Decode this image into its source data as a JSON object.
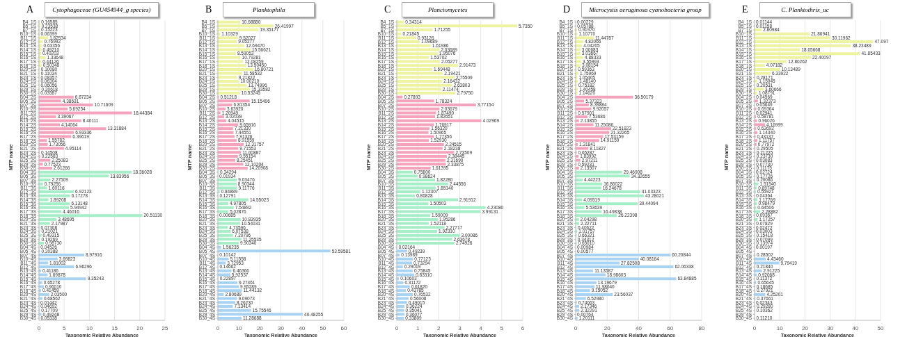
{
  "chart_data": [
    {
      "type": "bar",
      "orientation": "horizontal",
      "title": "Cytophagaceae (GU454944_g species)",
      "annotations": [
        "A"
      ],
      "xlabel": "Taxonomic Relative Abundance",
      "ylabel": "MTP name",
      "xlim": [
        0,
        25
      ],
      "xticks": [
        0,
        5,
        10,
        15,
        20,
        25
      ],
      "grid": "x",
      "categories": [
        "B4_1S",
        "B5_1S",
        "B7_1S",
        "B10_1S",
        "B11_1S",
        "B12_1S",
        "B13_1S",
        "B14_1S",
        "B15_1S",
        "B16_1S",
        "B17_1S",
        "B18_1S",
        "B20_1S",
        "B21_1S",
        "B23_1S",
        "B24_1S",
        "B25_1S",
        "B29_1S",
        "B30_1S",
        "B04_2S",
        "B05_2S",
        "B07_2S",
        "B10_2S",
        "B11_2S",
        "B12_2S",
        "B13_2S",
        "B14_2S",
        "B15_2S",
        "B16_2S",
        "B17_2S",
        "B18_2S",
        "B20_2S",
        "B21_2S",
        "B23_2S",
        "B24_2S",
        "B25_2S",
        "B29_2S",
        "B30_2S",
        "B04_3S",
        "B05_3S",
        "B07_3S",
        "B10_3S",
        "B11_3S",
        "B12_3S",
        "B13_3S",
        "B14_3S",
        "B15_3S",
        "B16_3S",
        "B17_3S",
        "B18_3S",
        "B20_3S",
        "B21_3S",
        "B23_3S",
        "B24_3S",
        "B25_3S",
        "B29_3S",
        "B30_3S",
        "B04_4S",
        "B05_4S",
        "B07_4S",
        "B10_4S",
        "B11_4S",
        "B12_4S",
        "B13_4S",
        "B14_4S",
        "B15_4S",
        "B16_4S",
        "B17_4S",
        "B18_4S",
        "B20_4S",
        "B21_4S",
        "B23_4S",
        "B24_4S",
        "B25_4S",
        "B29_4S",
        "B30_4S"
      ],
      "colors": [
        "#eef3a2",
        "#eef3a2",
        "#eef3a2",
        "#eef3a2",
        "#eef3a2",
        "#eef3a2",
        "#eef3a2",
        "#eef3a2",
        "#eef3a2",
        "#eef3a2",
        "#eef3a2",
        "#eef3a2",
        "#eef3a2",
        "#eef3a2",
        "#eef3a2",
        "#eef3a2",
        "#eef3a2",
        "#eef3a2",
        "#eef3a2",
        "#f5a3bd",
        "#f5a3bd",
        "#f5a3bd",
        "#f5a3bd",
        "#f5a3bd",
        "#f5a3bd",
        "#f5a3bd",
        "#f5a3bd",
        "#f5a3bd",
        "#f5a3bd",
        "#f5a3bd",
        "#f5a3bd",
        "#f5a3bd",
        "#f5a3bd",
        "#f5a3bd",
        "#f5a3bd",
        "#f5a3bd",
        "#f5a3bd",
        "#f5a3bd",
        "#a6eec7",
        "#a6eec7",
        "#a6eec7",
        "#a6eec7",
        "#a6eec7",
        "#a6eec7",
        "#a6eec7",
        "#a6eec7",
        "#a6eec7",
        "#a6eec7",
        "#a6eec7",
        "#a6eec7",
        "#a6eec7",
        "#a6eec7",
        "#a6eec7",
        "#a6eec7",
        "#a6eec7",
        "#a6eec7",
        "#a6eec7",
        "#a9d3f3",
        "#a9d3f3",
        "#a9d3f3",
        "#a9d3f3",
        "#a9d3f3",
        "#a9d3f3",
        "#a9d3f3",
        "#a9d3f3",
        "#a9d3f3",
        "#a9d3f3",
        "#a9d3f3",
        "#a9d3f3",
        "#a9d3f3",
        "#a9d3f3",
        "#a9d3f3",
        "#a9d3f3",
        "#a9d3f3",
        "#a9d3f3",
        "#a9d3f3"
      ],
      "values": [
        0.16585,
        0.23538,
        0.15223,
        0.06399,
        1.82534,
        0.76992,
        0.63356,
        0.4921,
        0.40203,
        1.33648,
        0.44126,
        0.50348,
        0.1008,
        0.11034,
        0.08357,
        0.06304,
        0.06056,
        0.20618,
        0.03587,
        6.87234,
        4.38631,
        10.71609,
        5.69254,
        18.44384,
        3.39067,
        8.40111,
        4.14064,
        13.31884,
        6.93336,
        6.39619,
        1.55782,
        1.73056,
        4.95114,
        0.14508,
        0.22583,
        2.25083,
        0.77523,
        2.61266,
        18.36028,
        13.83956,
        2.27509,
        0.79256,
        1.60116,
        6.92123,
        6.17278,
        1.89208,
        6.13148,
        5.94942,
        4.46016,
        20.5113,
        3.48695,
        2.17987,
        0.07308,
        0.21021,
        0.49315,
        0.19269,
        0.9873,
        0.04526,
        0.20388,
        8.97916,
        3.69823,
        1.81002,
        6.96296,
        0.41186,
        1.69878,
        9.35243,
        0.65278,
        0.9601,
        0.41459,
        2.035,
        0.68562,
        0.01442,
        0.04692,
        0.17709,
        0.49248,
        0.05338
      ],
      "value_labels": [
        "0.16585",
        "0.23538",
        "0.15223",
        "0.06399",
        "1.82534",
        "0.76992",
        "0.63356",
        "0.49210",
        "0.40203",
        "1.33648",
        "0.44126",
        "0.50348",
        "0.10080",
        "0.11034",
        "0.08357",
        "0.06304",
        "0.06056",
        "0.20618",
        "0.03587",
        "6.87234",
        "4.38631",
        "10.71609",
        "5.69254",
        "18.44384",
        "3.39067",
        "8.40111",
        "4.14064",
        "13.31884",
        "6.93336",
        "6.39619",
        "1.55782",
        "1.73056",
        "4.95114",
        "0.14508",
        "0.22583",
        "2.25083",
        "0.77523",
        "2.61266",
        "18.36028",
        "13.83956",
        "2.27509",
        "0.79256",
        "1.60116",
        "6.92123",
        "6.17278",
        "1.89208",
        "6.13148",
        "5.94942",
        "4.46016",
        "20.51130",
        "3.48695",
        "2.17987",
        "0.07308",
        "0.21021",
        "0.49315",
        "0.19269",
        "0.98730",
        "0.04526",
        "0.20388",
        "8.97916",
        "3.69823",
        "1.81002",
        "6.96296",
        "0.41186",
        "1.69878",
        "9.35243",
        "0.65278",
        "0.96010",
        "0.41459",
        "2.03500",
        "0.68562",
        "0.01442",
        "0.04692",
        "0.17709",
        "0.49248",
        "0.05338"
      ]
    },
    {
      "type": "bar",
      "orientation": "horizontal",
      "title": "Planktophila",
      "annotations": [
        "B"
      ],
      "xlabel": "Taxonomic Relative Abundance",
      "ylabel": "MTP name",
      "xlim": [
        0,
        60
      ],
      "xticks": [
        0,
        10,
        20,
        30,
        40,
        50,
        60
      ],
      "grid": "x",
      "categories": [
        "B4_1S",
        "B5_1S",
        "B7_1S",
        "B10_1S",
        "B11_1S",
        "B12_1S",
        "B13_1S",
        "B14_1S",
        "B15_1S",
        "B16_1S",
        "B17_1S",
        "B18_1S",
        "B20_1S",
        "B21_1S",
        "B23_1S",
        "B24_1S",
        "B25_1S",
        "B29_1S",
        "B30_1S",
        "B04_2S",
        "B05_2S",
        "B07_2S",
        "B10_2S",
        "B11_2S",
        "B12_2S",
        "B13_2S",
        "B14_2S",
        "B15_2S",
        "B16_2S",
        "B17_2S",
        "B18_2S",
        "B20_2S",
        "B21_2S",
        "B23_2S",
        "B24_2S",
        "B25_2S",
        "B29_2S",
        "B30_2S",
        "B04_3S",
        "B05_3S",
        "B07_3S",
        "B10_3S",
        "B11_3S",
        "B12_3S",
        "B13_3S",
        "B14_3S",
        "B15_3S",
        "B16_3S",
        "B17_3S",
        "B18_3S",
        "B20_3S",
        "B21_3S",
        "B23_3S",
        "B24_3S",
        "B25_3S",
        "B29_3S",
        "B30_3S",
        "B04_4S",
        "B05_4S",
        "B07_4S",
        "B10_4S",
        "B11_4S",
        "B12_4S",
        "B13_4S",
        "B14_4S",
        "B15_4S",
        "B16_4S",
        "B17_4S",
        "B18_4S",
        "B20_4S",
        "B21_4S",
        "B23_4S",
        "B24_4S",
        "B25_4S",
        "B29_4S",
        "B30_4S"
      ],
      "colors": [
        "#eef3a2",
        "#eef3a2",
        "#eef3a2",
        "#eef3a2",
        "#eef3a2",
        "#eef3a2",
        "#eef3a2",
        "#eef3a2",
        "#eef3a2",
        "#eef3a2",
        "#eef3a2",
        "#eef3a2",
        "#eef3a2",
        "#eef3a2",
        "#eef3a2",
        "#eef3a2",
        "#eef3a2",
        "#eef3a2",
        "#eef3a2",
        "#f5a3bd",
        "#f5a3bd",
        "#f5a3bd",
        "#f5a3bd",
        "#f5a3bd",
        "#f5a3bd",
        "#f5a3bd",
        "#f5a3bd",
        "#f5a3bd",
        "#f5a3bd",
        "#f5a3bd",
        "#f5a3bd",
        "#f5a3bd",
        "#f5a3bd",
        "#f5a3bd",
        "#f5a3bd",
        "#f5a3bd",
        "#f5a3bd",
        "#f5a3bd",
        "#a6eec7",
        "#a6eec7",
        "#a6eec7",
        "#a6eec7",
        "#a6eec7",
        "#a6eec7",
        "#a6eec7",
        "#a6eec7",
        "#a6eec7",
        "#a6eec7",
        "#a6eec7",
        "#a6eec7",
        "#a6eec7",
        "#a6eec7",
        "#a6eec7",
        "#a6eec7",
        "#a6eec7",
        "#a6eec7",
        "#a6eec7",
        "#a9d3f3",
        "#a9d3f3",
        "#a9d3f3",
        "#a9d3f3",
        "#a9d3f3",
        "#a9d3f3",
        "#a9d3f3",
        "#a9d3f3",
        "#a9d3f3",
        "#a9d3f3",
        "#a9d3f3",
        "#a9d3f3",
        "#a9d3f3",
        "#a9d3f3",
        "#a9d3f3",
        "#a9d3f3",
        "#a9d3f3",
        "#a9d3f3",
        "#a9d3f3"
      ],
      "values": [
        10.6888,
        26.41997,
        19.35177,
        1.10329,
        9.52027,
        9.05277,
        12.6947,
        15.56621,
        8.59053,
        10.79281,
        12.08259,
        13.5045,
        16.80721,
        11.58532,
        9.21822,
        10.0021,
        13.74996,
        15.33582,
        10.53245,
        0.51218,
        15.15496,
        6.81354,
        3.6392,
        1.20949,
        3.02039,
        4.04515,
        9.65916,
        7.2133,
        7.44551,
        7.91326,
        8.91559,
        12.31757,
        9.71553,
        11.00887,
        9.55154,
        8.25451,
        12.10204,
        14.20908,
        0.34294,
        0.01934,
        9.03476,
        8.90344,
        9.11776,
        0.84889,
        0.12791,
        14.55023,
        4.97805,
        7.54892,
        5.02876,
        0.00685,
        10.83935,
        10.54031,
        4.73596,
        6.07538,
        7.20796,
        11.25535,
        9.9034,
        1.56235,
        53.59581,
        0.10142,
        5.11558,
        3.72953,
        0.14662,
        6.46366,
        5.92537,
        0.22897,
        9.27461,
        9.95289,
        11.44132,
        2.80689,
        9.09073,
        8.2623,
        7.13414,
        15.75546,
        40.48255,
        11.28688
      ],
      "value_labels": [
        "10.68880",
        "26.41997",
        "19.35177",
        "1.10329",
        "9.52027",
        "9.05277",
        "12.69470",
        "15.56621",
        "8.59053",
        "10.79281",
        "12.08259",
        "13.50450",
        "16.80721",
        "11.58532",
        "9.21822",
        "10.00210",
        "13.74996",
        "15.33582",
        "10.53245",
        "0.51218",
        "15.15496",
        "6.81354",
        "3.63920",
        "1.20949",
        "3.02039",
        "4.04515",
        "9.65916",
        "7.21330",
        "7.44551",
        "7.91326",
        "8.91559",
        "12.31757",
        "9.71553",
        "11.00887",
        "9.55154",
        "8.25451",
        "12.10204",
        "14.20908",
        "0.34294",
        "0.01934",
        "9.03476",
        "8.90344",
        "9.11776",
        "0.84889",
        "0.12791",
        "14.55023",
        "4.97805",
        "7.54892",
        "5.02876",
        "0.00685",
        "10.83935",
        "10.54031",
        "4.73596",
        "6.07538",
        "7.20796",
        "11.25535",
        "9.90340",
        "1.56235",
        "53.59581",
        "0.10142",
        "5.11558",
        "3.72953",
        "0.14662",
        "6.46366",
        "5.92537",
        "0.22897",
        "9.27461",
        "9.95289",
        "11.44132",
        "2.80689",
        "9.09073",
        "8.26230",
        "7.13414",
        "15.75546",
        "40.48255",
        "11.28688"
      ]
    },
    {
      "type": "bar",
      "orientation": "horizontal",
      "title": "Planctomycetes",
      "annotations": [
        "C"
      ],
      "xlabel": "Taxonomic Relative Abundance",
      "ylabel": "MTP name",
      "xlim": [
        0,
        6
      ],
      "xticks": [
        0,
        1,
        2,
        3,
        4,
        5,
        6
      ],
      "grid": "x",
      "categories": [
        "B4_1S",
        "B5_1S",
        "B7_1S",
        "B10_1S",
        "B11_1S",
        "B12_1S",
        "B13_1S",
        "B14_1S",
        "B15_1S",
        "B16_1S",
        "B17_1S",
        "B18_1S",
        "B20_1S",
        "B21_1S",
        "B23_1S",
        "B24_1S",
        "B25_1S",
        "B29_1S",
        "B30_1S",
        "B04_2S",
        "B05_2S",
        "B07_2S",
        "B10_2S",
        "B11_2S",
        "B12_2S",
        "B13_2S",
        "B14_2S",
        "B15_2S",
        "B16_2S",
        "B17_2S",
        "B18_2S",
        "B20_2S",
        "B21_2S",
        "B23_2S",
        "B24_2S",
        "B25_2S",
        "B29_2S",
        "B30_2S",
        "B04_3S",
        "B05_3S",
        "B07_3S",
        "B10_3S",
        "B11_3S",
        "B12_3S",
        "B13_3S",
        "B14_3S",
        "B15_3S",
        "B16_3S",
        "B17_3S",
        "B18_3S",
        "B20_3S",
        "B21_3S",
        "B23_3S",
        "B24_3S",
        "B25_3S",
        "B29_3S",
        "B30_3S",
        "B04_4S",
        "B05_4S",
        "B07_4S",
        "B10_4S",
        "B11_4S",
        "B12_4S",
        "B13_4S",
        "B14_4S",
        "B15_4S",
        "B16_4S",
        "B17_4S",
        "B18_4S",
        "B20_4S",
        "B21_4S",
        "B23_4S",
        "B24_4S",
        "B25_4S",
        "B29_4S",
        "B30_4S"
      ],
      "colors": [
        "#eef3a2",
        "#eef3a2",
        "#eef3a2",
        "#eef3a2",
        "#eef3a2",
        "#eef3a2",
        "#eef3a2",
        "#eef3a2",
        "#eef3a2",
        "#eef3a2",
        "#eef3a2",
        "#eef3a2",
        "#eef3a2",
        "#eef3a2",
        "#eef3a2",
        "#eef3a2",
        "#eef3a2",
        "#eef3a2",
        "#eef3a2",
        "#f5a3bd",
        "#f5a3bd",
        "#f5a3bd",
        "#f5a3bd",
        "#f5a3bd",
        "#f5a3bd",
        "#f5a3bd",
        "#f5a3bd",
        "#f5a3bd",
        "#f5a3bd",
        "#f5a3bd",
        "#f5a3bd",
        "#f5a3bd",
        "#f5a3bd",
        "#f5a3bd",
        "#f5a3bd",
        "#f5a3bd",
        "#f5a3bd",
        "#f5a3bd",
        "#a6eec7",
        "#a6eec7",
        "#a6eec7",
        "#a6eec7",
        "#a6eec7",
        "#a6eec7",
        "#a6eec7",
        "#a6eec7",
        "#a6eec7",
        "#a6eec7",
        "#a6eec7",
        "#a6eec7",
        "#a6eec7",
        "#a6eec7",
        "#a6eec7",
        "#a6eec7",
        "#a6eec7",
        "#a6eec7",
        "#a6eec7",
        "#a9d3f3",
        "#a9d3f3",
        "#a9d3f3",
        "#a9d3f3",
        "#a9d3f3",
        "#a9d3f3",
        "#a9d3f3",
        "#a9d3f3",
        "#a9d3f3",
        "#a9d3f3",
        "#a9d3f3",
        "#a9d3f3",
        "#a9d3f3",
        "#a9d3f3",
        "#a9d3f3",
        "#a9d3f3",
        "#a9d3f3",
        "#a9d3f3",
        "#a9d3f3"
      ],
      "values": [
        0.34314,
        5.735,
        1.71255,
        0.21845,
        0.93126,
        1.09689,
        1.61986,
        2.03689,
        1.95076,
        1.53702,
        2.05277,
        2.91473,
        1.69448,
        2.19421,
        2.75509,
        2.16432,
        2.63803,
        2.11474,
        2.7975,
        0.27893,
        1.78324,
        3.77154,
        2.03679,
        1.8749,
        1.82651,
        4.02969,
        1.76917,
        1.5632,
        1.50965,
        1.77356,
        1.5293,
        2.24515,
        2.18238,
        2.73509,
        2.38445,
        2.3169,
        2.33875,
        1.61395,
        0.758,
        0.98624,
        1.8228,
        2.44556,
        1.8514,
        1.12307,
        0.86828,
        2.91912,
        1.50503,
        4.2308,
        3.99131,
        1.59009,
        1.95286,
        1.52118,
        2.27717,
        1.9231,
        3.00086,
        2.63678,
        2.74926,
        0.02164,
        0.49239,
        0.13989,
        0.77123,
        0.73294,
        0.29019,
        0.75845,
        0.8331,
        0.10603,
        0.31172,
        0.6182,
        0.43785,
        0.76532,
        0.56008,
        0.49015,
        0.36224,
        0.35041,
        0.36077,
        0.33809
      ],
      "value_labels": [
        "0.34314",
        "5.7350",
        "1.71255",
        "0.21845",
        "0.93126",
        "1.09689",
        "1.61986",
        "2.03689",
        "1.95076",
        "1.53702",
        "2.05277",
        "2.91473",
        "1.69448",
        "2.19421",
        "2.75509",
        "2.16432",
        "2.63803",
        "2.11474",
        "2.79750",
        "0.27893",
        "1.78324",
        "3.77154",
        "2.03679",
        "1.87490",
        "1.82651",
        "4.02969",
        "1.76917",
        "1.56320",
        "1.50965",
        "1.77356",
        "1.52930",
        "2.24515",
        "2.18238",
        "2.73509",
        "2.38445",
        "2.31690",
        "2.33875",
        "1.61395",
        "0.75800",
        "0.98624",
        "1.82280",
        "2.44556",
        "1.85140",
        "1.12307",
        "0.86828",
        "2.91912",
        "1.50503",
        "4.23080",
        "3.99131",
        "1.59009",
        "1.95286",
        "1.52118",
        "2.27717",
        "1.92310",
        "3.00086",
        "2.63678",
        "2.74926",
        "0.02164",
        "0.49239",
        "0.13989",
        "0.77123",
        "0.73294",
        "0.29019",
        "0.75845",
        "0.83310",
        "0.10603",
        "0.31172",
        "0.61820",
        "0.43785",
        "0.76532",
        "0.56008",
        "0.49015",
        "0.36224",
        "0.35041",
        "0.36077",
        "0.33809"
      ]
    },
    {
      "type": "bar",
      "orientation": "horizontal",
      "title": "Microcystis aeruginosa cyanobacteria group",
      "annotations": [
        "D"
      ],
      "xlabel": "Taxonomic Relative Abundance",
      "ylabel": "MTP name",
      "xlim": [
        0,
        80
      ],
      "xticks": [
        0,
        20,
        40,
        60,
        80
      ],
      "grid": "x",
      "categories": [
        "B4_1S",
        "B5_1S",
        "B7_1S",
        "B10_1S",
        "B11_1S",
        "B12_1S",
        "B13_1S",
        "B14_1S",
        "B15_1S",
        "B16_1S",
        "B17_1S",
        "B18_1S",
        "B20_1S",
        "B21_1S",
        "B23_1S",
        "B24_1S",
        "B25_1S",
        "B29_1S",
        "B30_1S",
        "B04_2S",
        "B05_2S",
        "B07_2S",
        "B10_2S",
        "B11_2S",
        "B12_2S",
        "B13_2S",
        "B14_2S",
        "B15_2S",
        "B16_2S",
        "B17_2S",
        "B18_2S",
        "B20_2S",
        "B21_2S",
        "B23_2S",
        "B24_2S",
        "B25_2S",
        "B29_2S",
        "B30_2S",
        "B04_3S",
        "B05_3S",
        "B07_3S",
        "B10_3S",
        "B11_3S",
        "B12_3S",
        "B13_3S",
        "B14_3S",
        "B15_3S",
        "B16_3S",
        "B17_3S",
        "B18_3S",
        "B20_3S",
        "B21_3S",
        "B23_3S",
        "B24_3S",
        "B25_3S",
        "B29_3S",
        "B30_3S",
        "B04_4S",
        "B05_4S",
        "B07_4S",
        "B10_4S",
        "B11_4S",
        "B12_4S",
        "B13_4S",
        "B14_4S",
        "B15_4S",
        "B16_4S",
        "B17_4S",
        "B18_4S",
        "B20_4S",
        "B21_4S",
        "B23_4S",
        "B24_4S",
        "B25_4S",
        "B29_4S",
        "B30_4S"
      ],
      "colors": [
        "#eef3a2",
        "#eef3a2",
        "#eef3a2",
        "#eef3a2",
        "#eef3a2",
        "#eef3a2",
        "#eef3a2",
        "#eef3a2",
        "#eef3a2",
        "#eef3a2",
        "#eef3a2",
        "#eef3a2",
        "#eef3a2",
        "#eef3a2",
        "#eef3a2",
        "#eef3a2",
        "#eef3a2",
        "#eef3a2",
        "#eef3a2",
        "#f5a3bd",
        "#f5a3bd",
        "#f5a3bd",
        "#f5a3bd",
        "#f5a3bd",
        "#f5a3bd",
        "#f5a3bd",
        "#f5a3bd",
        "#f5a3bd",
        "#f5a3bd",
        "#f5a3bd",
        "#f5a3bd",
        "#f5a3bd",
        "#f5a3bd",
        "#f5a3bd",
        "#f5a3bd",
        "#f5a3bd",
        "#f5a3bd",
        "#f5a3bd",
        "#a6eec7",
        "#a6eec7",
        "#a6eec7",
        "#a6eec7",
        "#a6eec7",
        "#a6eec7",
        "#a6eec7",
        "#a6eec7",
        "#a6eec7",
        "#a6eec7",
        "#a6eec7",
        "#a6eec7",
        "#a6eec7",
        "#a6eec7",
        "#a6eec7",
        "#a6eec7",
        "#a6eec7",
        "#a6eec7",
        "#a6eec7",
        "#a9d3f3",
        "#a9d3f3",
        "#a9d3f3",
        "#a9d3f3",
        "#a9d3f3",
        "#a9d3f3",
        "#a9d3f3",
        "#a9d3f3",
        "#a9d3f3",
        "#a9d3f3",
        "#a9d3f3",
        "#a9d3f3",
        "#a9d3f3",
        "#a9d3f3",
        "#a9d3f3",
        "#a9d3f3",
        "#a9d3f3",
        "#a9d3f3",
        "#a9d3f3"
      ],
      "values": [
        0.00229,
        0.05788,
        0.9197,
        1.1077,
        11.44787,
        4.82066,
        4.04205,
        3.00683,
        3.03667,
        4.88333,
        3.55993,
        3.08154,
        0.59363,
        1.75969,
        1.05405,
        1.4814,
        0.75182,
        1.40458,
        1.1462,
        36.50179,
        5.37323,
        8.39884,
        9.92057,
        0.57901,
        7.53686,
        2.13855,
        11.25086,
        22.51823,
        21.32265,
        17.53159,
        14.91159,
        1.31841,
        8.11827,
        0.65287,
        1.83992,
        2.97211,
        0.59231,
        2.13507,
        29.46908,
        34.32655,
        4.44223,
        16.86022,
        16.24678,
        41.03323,
        43.28021,
        4.09519,
        39.44094,
        5.53639,
        16.49838,
        26.22398,
        2.04298,
        2.22711,
        0.40622,
        1.01757,
        0.66321,
        0.34312,
        0.6501,
        0.00984,
        0.00577,
        60.20844,
        40.08164,
        27.82508,
        62.06338,
        11.13587,
        18.98603,
        63.84885,
        13.19679,
        11.9864,
        9.15052,
        23.56037,
        6.5298,
        0.74063,
        2.17346,
        2.32291,
        0.00764,
        1.20111
      ],
      "value_labels": [
        "0.00229",
        "0.05788",
        "0.91970",
        "1.10770",
        "11.44787",
        "4.82066",
        "4.04205",
        "3.00683",
        "3.03667",
        "4.88333",
        "3.55993",
        "3.08154",
        "0.59363",
        "1.75969",
        "1.05405",
        "1.48140",
        "0.75182",
        "1.40458",
        "1.14620",
        "36.50179",
        "5.37323",
        "8.39884",
        "9.92057",
        "0.57901",
        "7.53686",
        "2.13855",
        "11.25086",
        "22.51823",
        "21.32265",
        "17.53159",
        "14.91159",
        "1.31841",
        "8.11827",
        "0.65287",
        "1.83992",
        "2.97211",
        "0.59231",
        "2.13507",
        "29.46908",
        "34.32655",
        "4.44223",
        "16.86022",
        "16.24678",
        "41.03323",
        "43.28021",
        "4.09519",
        "39.44094",
        "5.53639",
        "16.49838",
        "26.22398",
        "2.04298",
        "2.22711",
        "0.40622",
        "1.01757",
        "0.66321",
        "0.34312",
        "0.65010",
        "0.00984",
        "0.00577",
        "60.20844",
        "40.08164",
        "27.82508",
        "62.06338",
        "11.13587",
        "18.98603",
        "63.84885",
        "13.19679",
        "11.98640",
        "9.15052",
        "23.56037",
        "6.52980",
        "0.74063",
        "2.17346",
        "2.32291",
        "0.00764",
        "1.20111"
      ]
    },
    {
      "type": "bar",
      "orientation": "horizontal",
      "title": "C. Planktothrix_uc",
      "annotations": [
        "E"
      ],
      "xlabel": "Taxonomic Relative Abundance",
      "ylabel": "MTP name",
      "xlim": [
        0,
        50
      ],
      "xticks": [
        0,
        10,
        20,
        30,
        40,
        50
      ],
      "grid": "x",
      "categories": [
        "B4_1S",
        "B5_1S",
        "B7_1S",
        "B10_1S",
        "B11_1S",
        "B12_1S",
        "B13_1S",
        "B14_1S",
        "B15_1S",
        "B16_1S",
        "B17_1S",
        "B18_1S",
        "B20_1S",
        "B21_1S",
        "B23_1S",
        "B24_1S",
        "B25_1S",
        "B29_1S",
        "B30_1S",
        "B04_2S",
        "B05_2S",
        "B07_2S",
        "B10_2S",
        "B11_2S",
        "B12_2S",
        "B13_2S",
        "B14_2S",
        "B15_2S",
        "B16_2S",
        "B17_2S",
        "B18_2S",
        "B20_2S",
        "B21_2S",
        "B23_2S",
        "B24_2S",
        "B25_2S",
        "B29_2S",
        "B30_2S",
        "B04_3S",
        "B05_3S",
        "B07_3S",
        "B10_3S",
        "B11_3S",
        "B12_3S",
        "B13_3S",
        "B14_3S",
        "B15_3S",
        "B16_3S",
        "B17_3S",
        "B18_3S",
        "B20_3S",
        "B21_3S",
        "B23_3S",
        "B24_3S",
        "B25_3S",
        "B29_3S",
        "B30_3S",
        "B04_4S",
        "B05_4S",
        "B07_4S",
        "B10_4S",
        "B11_4S",
        "B12_4S",
        "B13_4S",
        "B14_4S",
        "B15_4S",
        "B16_4S",
        "B17_4S",
        "B18_4S",
        "B20_4S",
        "B21_4S",
        "B23_4S",
        "B24_4S",
        "B25_4S",
        "B29_4S",
        "B30_4S"
      ],
      "colors": [
        "#eef3a2",
        "#eef3a2",
        "#eef3a2",
        "#eef3a2",
        "#eef3a2",
        "#eef3a2",
        "#eef3a2",
        "#eef3a2",
        "#eef3a2",
        "#eef3a2",
        "#eef3a2",
        "#eef3a2",
        "#eef3a2",
        "#eef3a2",
        "#eef3a2",
        "#eef3a2",
        "#eef3a2",
        "#eef3a2",
        "#eef3a2",
        "#f5a3bd",
        "#f5a3bd",
        "#f5a3bd",
        "#f5a3bd",
        "#f5a3bd",
        "#f5a3bd",
        "#f5a3bd",
        "#f5a3bd",
        "#f5a3bd",
        "#f5a3bd",
        "#f5a3bd",
        "#f5a3bd",
        "#f5a3bd",
        "#f5a3bd",
        "#f5a3bd",
        "#f5a3bd",
        "#f5a3bd",
        "#f5a3bd",
        "#f5a3bd",
        "#a6eec7",
        "#a6eec7",
        "#a6eec7",
        "#a6eec7",
        "#a6eec7",
        "#a6eec7",
        "#a6eec7",
        "#a6eec7",
        "#a6eec7",
        "#a6eec7",
        "#a6eec7",
        "#a6eec7",
        "#a6eec7",
        "#a6eec7",
        "#a6eec7",
        "#a6eec7",
        "#a6eec7",
        "#a6eec7",
        "#a6eec7",
        "#a9d3f3",
        "#a9d3f3",
        "#a9d3f3",
        "#a9d3f3",
        "#a9d3f3",
        "#a9d3f3",
        "#a9d3f3",
        "#a9d3f3",
        "#a9d3f3",
        "#a9d3f3",
        "#a9d3f3",
        "#a9d3f3",
        "#a9d3f3",
        "#a9d3f3",
        "#a9d3f3",
        "#a9d3f3",
        "#a9d3f3",
        "#a9d3f3",
        "#a9d3f3"
      ],
      "values": [
        0.01144,
        0.01158,
        2.80984,
        21.86941,
        30.11962,
        47.097,
        38.23489,
        18.05668,
        41.85433,
        22.40097,
        12.80262,
        4.07182,
        10.13489,
        6.33922,
        0.28171,
        1.15045,
        0.20531,
        3.60666,
        1.08791,
        0.04569,
        1.32373,
        0.05649,
        0.69364,
        0.02941,
        0.58781,
        0.96026,
        4.16999,
        0.63692,
        1.1434,
        0.43137,
        1.11757,
        0.77972,
        0.29505,
        0.21225,
        0.2373,
        0.03083,
        0.0773,
        0.11175,
        0.02724,
        0.17726,
        0.20086,
        1.5154,
        0.89748,
        0.55921,
        0.04364,
        1.17769,
        0.98479,
        0.64506,
        2.28882,
        0.09367,
        1.17257,
        0.07829,
        0.02472,
        0.03003,
        0.15418,
        0.07099,
        0.13974,
        0.00197,
        null,
        0.28502,
        4.4346,
        9.79419,
        0.2184,
        2.91225,
        0.92068,
        0.11372,
        0.65645,
        0.18685,
        0.27921,
        4.25201,
        0.37661,
        0.02343,
        0.2928,
        0.10362,
        null,
        0.1121
      ],
      "value_labels": [
        "0.01144",
        "0.01158",
        "2.80984",
        "21.86941",
        "30.11962",
        "47.097",
        "38.23489",
        "18.05668",
        "41.85433",
        "22.40097",
        "12.80262",
        "4.07182",
        "10.13489",
        "6.33922",
        "0.28171",
        "1.15045",
        "0.20531",
        "3.60666",
        "1.08791",
        "0.04569",
        "1.32373",
        "0.05649",
        "0.69364",
        "0.02941",
        "0.58781",
        "0.96026",
        "4.16999",
        "0.63692",
        "1.14340",
        "0.43137",
        "1.11757",
        "0.77972",
        "0.29505",
        "0.21225",
        "0.23730",
        "0.03083",
        "0.07730",
        "0.11175",
        "0.02724",
        "0.17726",
        "0.20086",
        "1.51540",
        "0.89748",
        "0.55921",
        "0.04364",
        "1.17769",
        "0.98479",
        "0.64506",
        "2.28882",
        "0.09367",
        "1.17257",
        "0.07829",
        "0.02472",
        "0.03003",
        "0.15418",
        "0.07099",
        "0.13974",
        "0.00197",
        null,
        "0.28502",
        "4.43460",
        "9.79419",
        "0.21840",
        "2.91225",
        "0.92068",
        "0.11372",
        "0.65645",
        "0.18685",
        "0.27921",
        "4.25201",
        "0.37661",
        "0.02343",
        "0.29280",
        "0.10362",
        null,
        "0.11210"
      ]
    }
  ]
}
